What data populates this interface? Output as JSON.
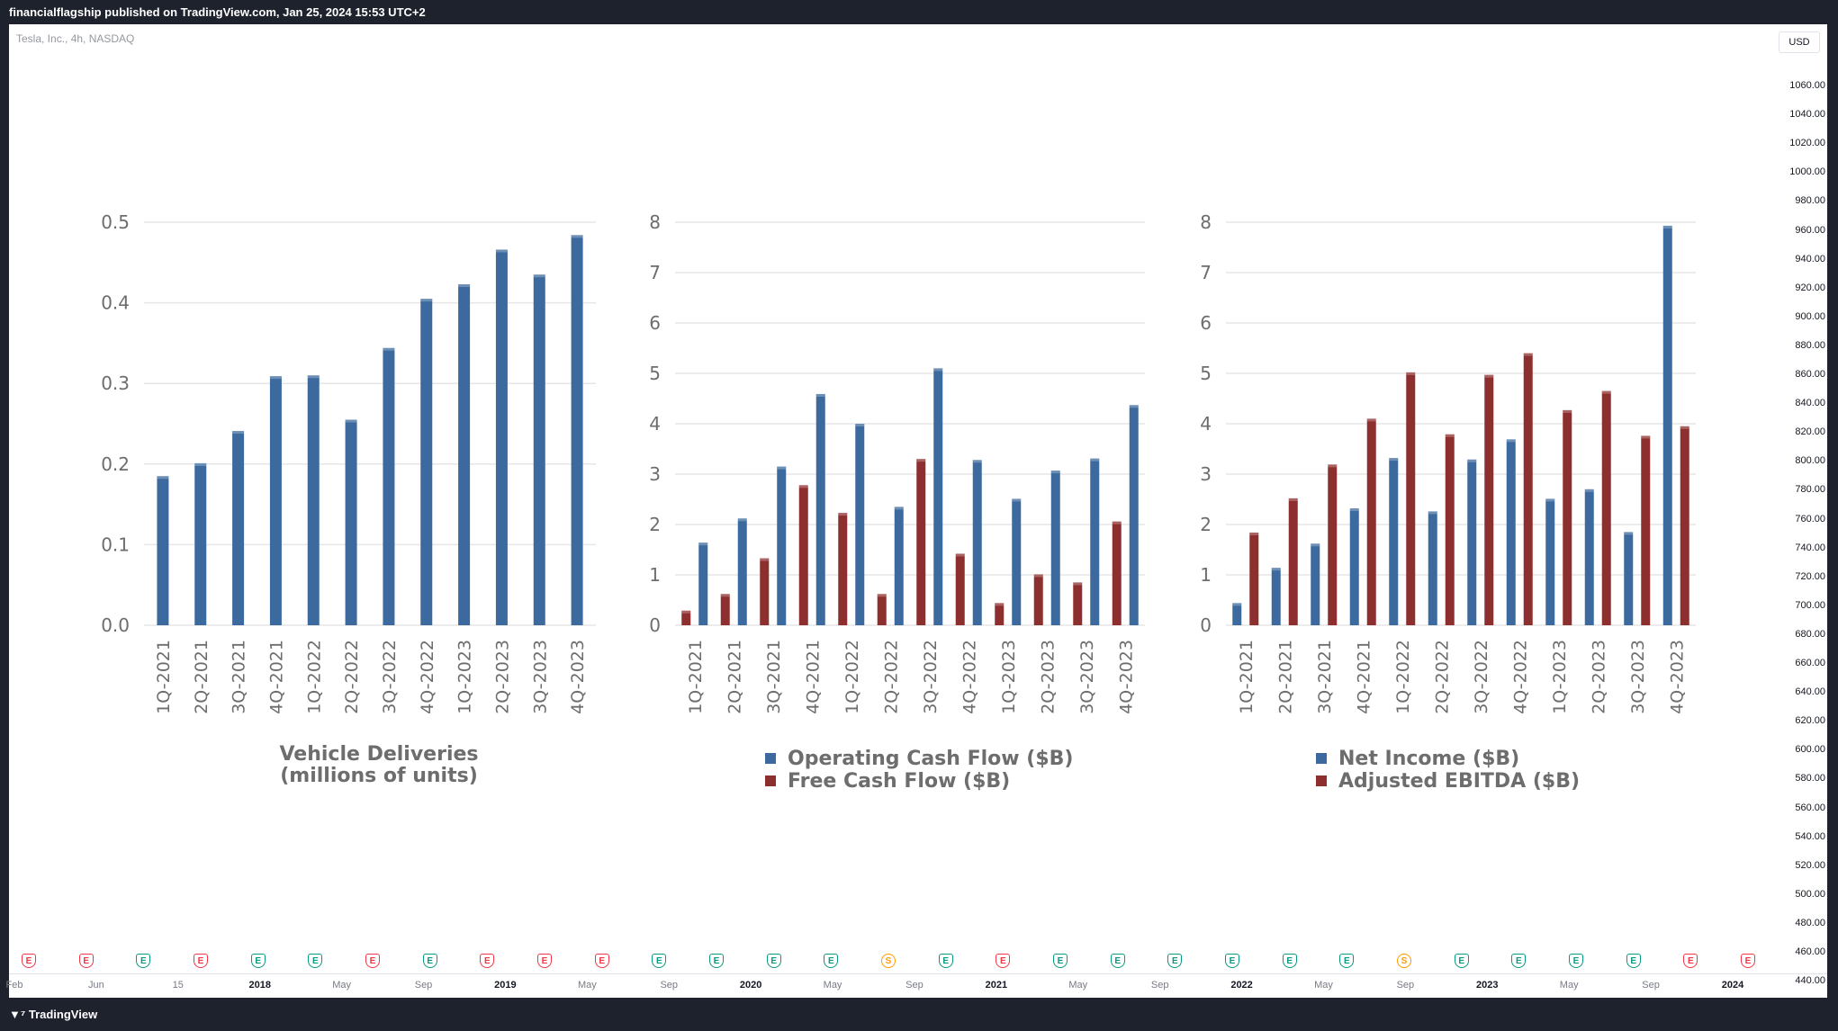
{
  "header": {
    "title": "financialflagship published on TradingView.com, Jan 25, 2024 15:53 UTC+2"
  },
  "symbol": "Tesla, Inc., 4h, NASDAQ",
  "currency": "USD",
  "brand": "TradingView",
  "price_axis": [
    "1060.00",
    "1040.00",
    "1020.00",
    "1000.00",
    "980.00",
    "960.00",
    "940.00",
    "920.00",
    "900.00",
    "880.00",
    "860.00",
    "840.00",
    "820.00",
    "800.00",
    "780.00",
    "760.00",
    "740.00",
    "720.00",
    "700.00",
    "680.00",
    "660.00",
    "640.00",
    "620.00",
    "600.00",
    "580.00",
    "560.00",
    "540.00",
    "520.00",
    "500.00",
    "480.00",
    "460.00",
    "440.00"
  ],
  "time_axis": [
    {
      "label": "Feb",
      "year": false
    },
    {
      "label": "Jun",
      "year": false
    },
    {
      "label": "15",
      "year": false
    },
    {
      "label": "2018",
      "year": true
    },
    {
      "label": "May",
      "year": false
    },
    {
      "label": "Sep",
      "year": false
    },
    {
      "label": "2019",
      "year": true
    },
    {
      "label": "May",
      "year": false
    },
    {
      "label": "Sep",
      "year": false
    },
    {
      "label": "2020",
      "year": true
    },
    {
      "label": "May",
      "year": false
    },
    {
      "label": "Sep",
      "year": false
    },
    {
      "label": "2021",
      "year": true
    },
    {
      "label": "May",
      "year": false
    },
    {
      "label": "Sep",
      "year": false
    },
    {
      "label": "2022",
      "year": true
    },
    {
      "label": "May",
      "year": false
    },
    {
      "label": "Sep",
      "year": false
    },
    {
      "label": "2023",
      "year": true
    },
    {
      "label": "May",
      "year": false
    },
    {
      "label": "Sep",
      "year": false
    },
    {
      "label": "2024",
      "year": true
    }
  ],
  "events": [
    "red",
    "red",
    "green",
    "red",
    "green",
    "green",
    "red",
    "green",
    "red",
    "red",
    "red",
    "green",
    "green",
    "green",
    "green",
    "split",
    "green",
    "red",
    "green",
    "green",
    "green",
    "green",
    "green",
    "green",
    "split",
    "green",
    "green",
    "green",
    "green",
    "red",
    "red"
  ],
  "event_letters": {
    "earnings": "E",
    "split": "S"
  },
  "colors": {
    "blue": "#3d6a9e",
    "red": "#8e2f2f",
    "grid": "#e6e6e6",
    "axis_text": "#6d6d6d"
  },
  "chart_data": [
    {
      "type": "bar",
      "categories": [
        "1Q-2021",
        "2Q-2021",
        "3Q-2021",
        "4Q-2021",
        "1Q-2022",
        "2Q-2022",
        "3Q-2022",
        "4Q-2022",
        "1Q-2023",
        "2Q-2023",
        "3Q-2023",
        "4Q-2023"
      ],
      "series": [
        {
          "name": "Vehicle Deliveries (millions of units)",
          "color": "blue",
          "values": [
            0.185,
            0.201,
            0.241,
            0.309,
            0.31,
            0.255,
            0.344,
            0.405,
            0.423,
            0.466,
            0.435,
            0.484
          ]
        }
      ],
      "title_lines": [
        "Vehicle Deliveries",
        "(millions of units)"
      ],
      "legend": false,
      "ylim": [
        0,
        0.5
      ],
      "yticks": [
        "0.0",
        "0.1",
        "0.2",
        "0.3",
        "0.4",
        "0.5"
      ],
      "ytick_values": [
        0,
        0.1,
        0.2,
        0.3,
        0.4,
        0.5
      ]
    },
    {
      "type": "bar",
      "categories": [
        "1Q-2021",
        "2Q-2021",
        "3Q-2021",
        "4Q-2021",
        "1Q-2022",
        "2Q-2022",
        "3Q-2022",
        "4Q-2022",
        "1Q-2023",
        "2Q-2023",
        "3Q-2023",
        "4Q-2023"
      ],
      "series": [
        {
          "name": "Free Cash Flow ($B)",
          "color": "red",
          "values": [
            0.29,
            0.62,
            1.33,
            2.78,
            2.23,
            0.62,
            3.3,
            1.42,
            0.44,
            1.01,
            0.85,
            2.06
          ]
        },
        {
          "name": "Operating Cash Flow ($B)",
          "color": "blue",
          "values": [
            1.64,
            2.12,
            3.15,
            4.59,
            4.0,
            2.35,
            5.1,
            3.28,
            2.51,
            3.07,
            3.31,
            4.37
          ]
        }
      ],
      "legend_order": [
        1,
        0
      ],
      "legend": true,
      "ylim": [
        0,
        8
      ],
      "yticks": [
        "0",
        "1",
        "2",
        "3",
        "4",
        "5",
        "6",
        "7",
        "8"
      ],
      "ytick_values": [
        0,
        1,
        2,
        3,
        4,
        5,
        6,
        7,
        8
      ]
    },
    {
      "type": "bar",
      "categories": [
        "1Q-2021",
        "2Q-2021",
        "3Q-2021",
        "4Q-2021",
        "1Q-2022",
        "2Q-2022",
        "3Q-2022",
        "4Q-2022",
        "1Q-2023",
        "2Q-2023",
        "3Q-2023",
        "4Q-2023"
      ],
      "series": [
        {
          "name": "Net Income ($B)",
          "color": "blue",
          "values": [
            0.44,
            1.14,
            1.62,
            2.32,
            3.32,
            2.26,
            3.29,
            3.69,
            2.51,
            2.7,
            1.85,
            7.93
          ]
        },
        {
          "name": "Adjusted EBITDA ($B)",
          "color": "red",
          "values": [
            1.84,
            2.52,
            3.19,
            4.1,
            5.02,
            3.79,
            4.97,
            5.4,
            4.27,
            4.65,
            3.76,
            3.95
          ]
        }
      ],
      "legend_order": [
        0,
        1
      ],
      "legend": true,
      "ylim": [
        0,
        8
      ],
      "yticks": [
        "0",
        "1",
        "2",
        "3",
        "4",
        "5",
        "6",
        "7",
        "8"
      ],
      "ytick_values": [
        0,
        1,
        2,
        3,
        4,
        5,
        6,
        7,
        8
      ]
    }
  ]
}
